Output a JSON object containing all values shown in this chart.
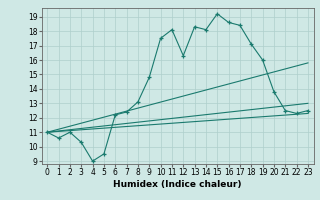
{
  "xlabel": "Humidex (Indice chaleur)",
  "background_color": "#cfe8e5",
  "grid_color": "#aecfcc",
  "line_color": "#1a7a6e",
  "xlim": [
    -0.5,
    23.5
  ],
  "ylim": [
    8.8,
    19.6
  ],
  "yticks": [
    9,
    10,
    11,
    12,
    13,
    14,
    15,
    16,
    17,
    18,
    19
  ],
  "xticks": [
    0,
    1,
    2,
    3,
    4,
    5,
    6,
    7,
    8,
    9,
    10,
    11,
    12,
    13,
    14,
    15,
    16,
    17,
    18,
    19,
    20,
    21,
    22,
    23
  ],
  "line1_x": [
    0,
    1,
    2,
    3,
    4,
    5,
    6,
    7,
    8,
    9,
    10,
    11,
    12,
    13,
    14,
    15,
    16,
    17,
    18,
    19,
    20,
    21,
    22,
    23
  ],
  "line1_y": [
    11.0,
    10.6,
    11.0,
    10.3,
    9.0,
    9.5,
    12.2,
    12.4,
    13.1,
    14.8,
    17.5,
    18.1,
    16.3,
    18.3,
    18.1,
    19.2,
    18.6,
    18.4,
    17.1,
    16.0,
    13.8,
    12.5,
    12.3,
    12.5
  ],
  "line3_x": [
    0,
    23
  ],
  "line3_y": [
    11.0,
    13.0
  ],
  "line4_x": [
    0,
    23
  ],
  "line4_y": [
    11.0,
    15.8
  ],
  "line5_x": [
    0,
    23
  ],
  "line5_y": [
    11.0,
    12.3
  ]
}
